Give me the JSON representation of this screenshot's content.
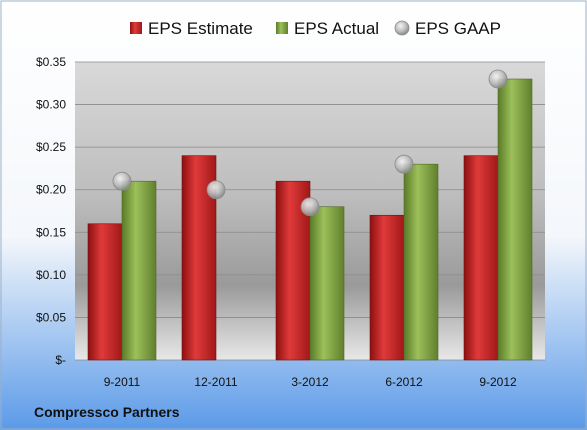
{
  "company": "Compressco Partners",
  "colors": {
    "estimate": "#d42a2a",
    "actual": "#86aa4a",
    "gaap": "#b8b8b8",
    "background_top": "#ffffff",
    "background_bottom": "#5b9ae8"
  },
  "chart_data": {
    "type": "bar",
    "title": "",
    "xlabel": "",
    "ylabel": "",
    "categories": [
      "9-2011",
      "12-2011",
      "3-2012",
      "6-2012",
      "9-2012"
    ],
    "series": [
      {
        "name": "EPS Estimate",
        "kind": "bar",
        "color": "#d42a2a",
        "values": [
          0.16,
          0.24,
          0.21,
          0.17,
          0.24
        ]
      },
      {
        "name": "EPS Actual",
        "kind": "bar",
        "color": "#86aa4a",
        "values": [
          0.21,
          null,
          0.18,
          0.23,
          0.33
        ]
      },
      {
        "name": "EPS GAAP",
        "kind": "marker",
        "color": "#b8b8b8",
        "values": [
          0.21,
          0.2,
          0.18,
          0.23,
          0.33
        ]
      }
    ],
    "ylim": [
      0,
      0.35
    ],
    "yticks": [
      0,
      0.05,
      0.1,
      0.15,
      0.2,
      0.25,
      0.3,
      0.35
    ],
    "ytick_labels": [
      "$-",
      "$0.05",
      "$0.10",
      "$0.15",
      "$0.20",
      "$0.25",
      "$0.30",
      "$0.35"
    ],
    "grid": true,
    "legend": "top"
  }
}
